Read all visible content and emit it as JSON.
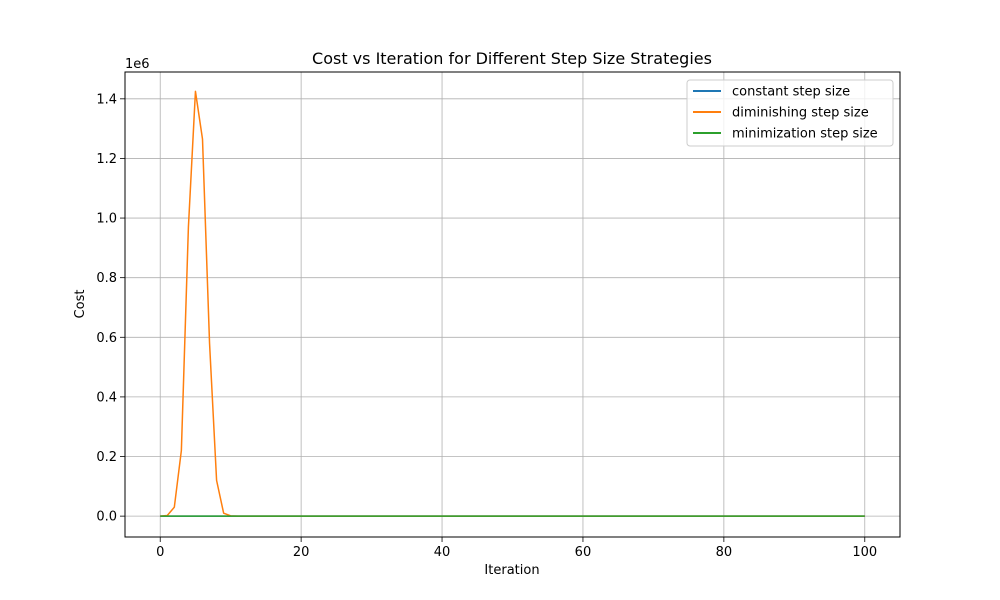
{
  "chart_data": {
    "type": "line",
    "title": "Cost vs Iteration for Different Step Size Strategies",
    "xlabel": "Iteration",
    "ylabel": "Cost",
    "y_scale_label": "1e6",
    "xlim": [
      -5,
      105
    ],
    "ylim": [
      -0.07,
      1.49
    ],
    "xticks": [
      0,
      20,
      40,
      60,
      80,
      100
    ],
    "xtick_labels": [
      "0",
      "20",
      "40",
      "60",
      "80",
      "100"
    ],
    "yticks": [
      0.0,
      0.2,
      0.4,
      0.6,
      0.8,
      1.0,
      1.2,
      1.4
    ],
    "ytick_labels": [
      "0.0",
      "0.2",
      "0.4",
      "0.6",
      "0.8",
      "1.0",
      "1.2",
      "1.4"
    ],
    "grid": true,
    "legend_position": "top-right",
    "series": [
      {
        "name": "constant step size",
        "color": "#1f77b4",
        "x": [
          0,
          100
        ],
        "y": [
          0.0,
          0.0
        ]
      },
      {
        "name": "diminishing step size",
        "color": "#ff7f0e",
        "x": [
          0,
          1,
          2,
          3,
          4,
          5,
          6,
          7,
          8,
          9,
          10,
          11,
          12,
          100
        ],
        "y": [
          0.0,
          0.002,
          0.03,
          0.22,
          0.97,
          1.425,
          1.265,
          0.58,
          0.12,
          0.01,
          0.001,
          0.0,
          0.0,
          0.0
        ]
      },
      {
        "name": "minimization step size",
        "color": "#2ca02c",
        "x": [
          0,
          100
        ],
        "y": [
          0.0,
          0.0
        ]
      }
    ]
  }
}
